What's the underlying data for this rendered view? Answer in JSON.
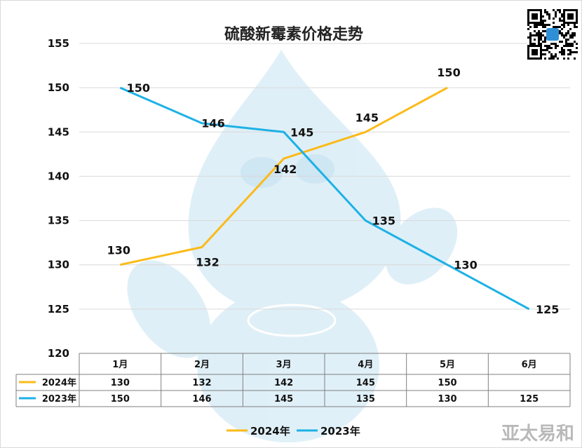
{
  "chart_data": {
    "type": "line",
    "title": "硫酸新霉素价格走势",
    "categories": [
      "1月",
      "2月",
      "3月",
      "4月",
      "5月",
      "6月"
    ],
    "ylim": [
      120,
      155
    ],
    "yticks": [
      120,
      125,
      130,
      135,
      140,
      145,
      150,
      155
    ],
    "grid": true,
    "legend": "bottom",
    "series": [
      {
        "name": "2024年",
        "color": "#FBBA18",
        "values": [
          130,
          132,
          142,
          145,
          150,
          null
        ]
      },
      {
        "name": "2023年",
        "color": "#1DB1E6",
        "values": [
          150,
          146,
          145,
          135,
          130,
          125
        ]
      }
    ]
  },
  "watermark": {
    "text": "亚太易和"
  },
  "colors": {
    "watermark_blue": "#c6e3f2",
    "grid": "#d9d9d9",
    "table_border": "#7f7f7f"
  }
}
